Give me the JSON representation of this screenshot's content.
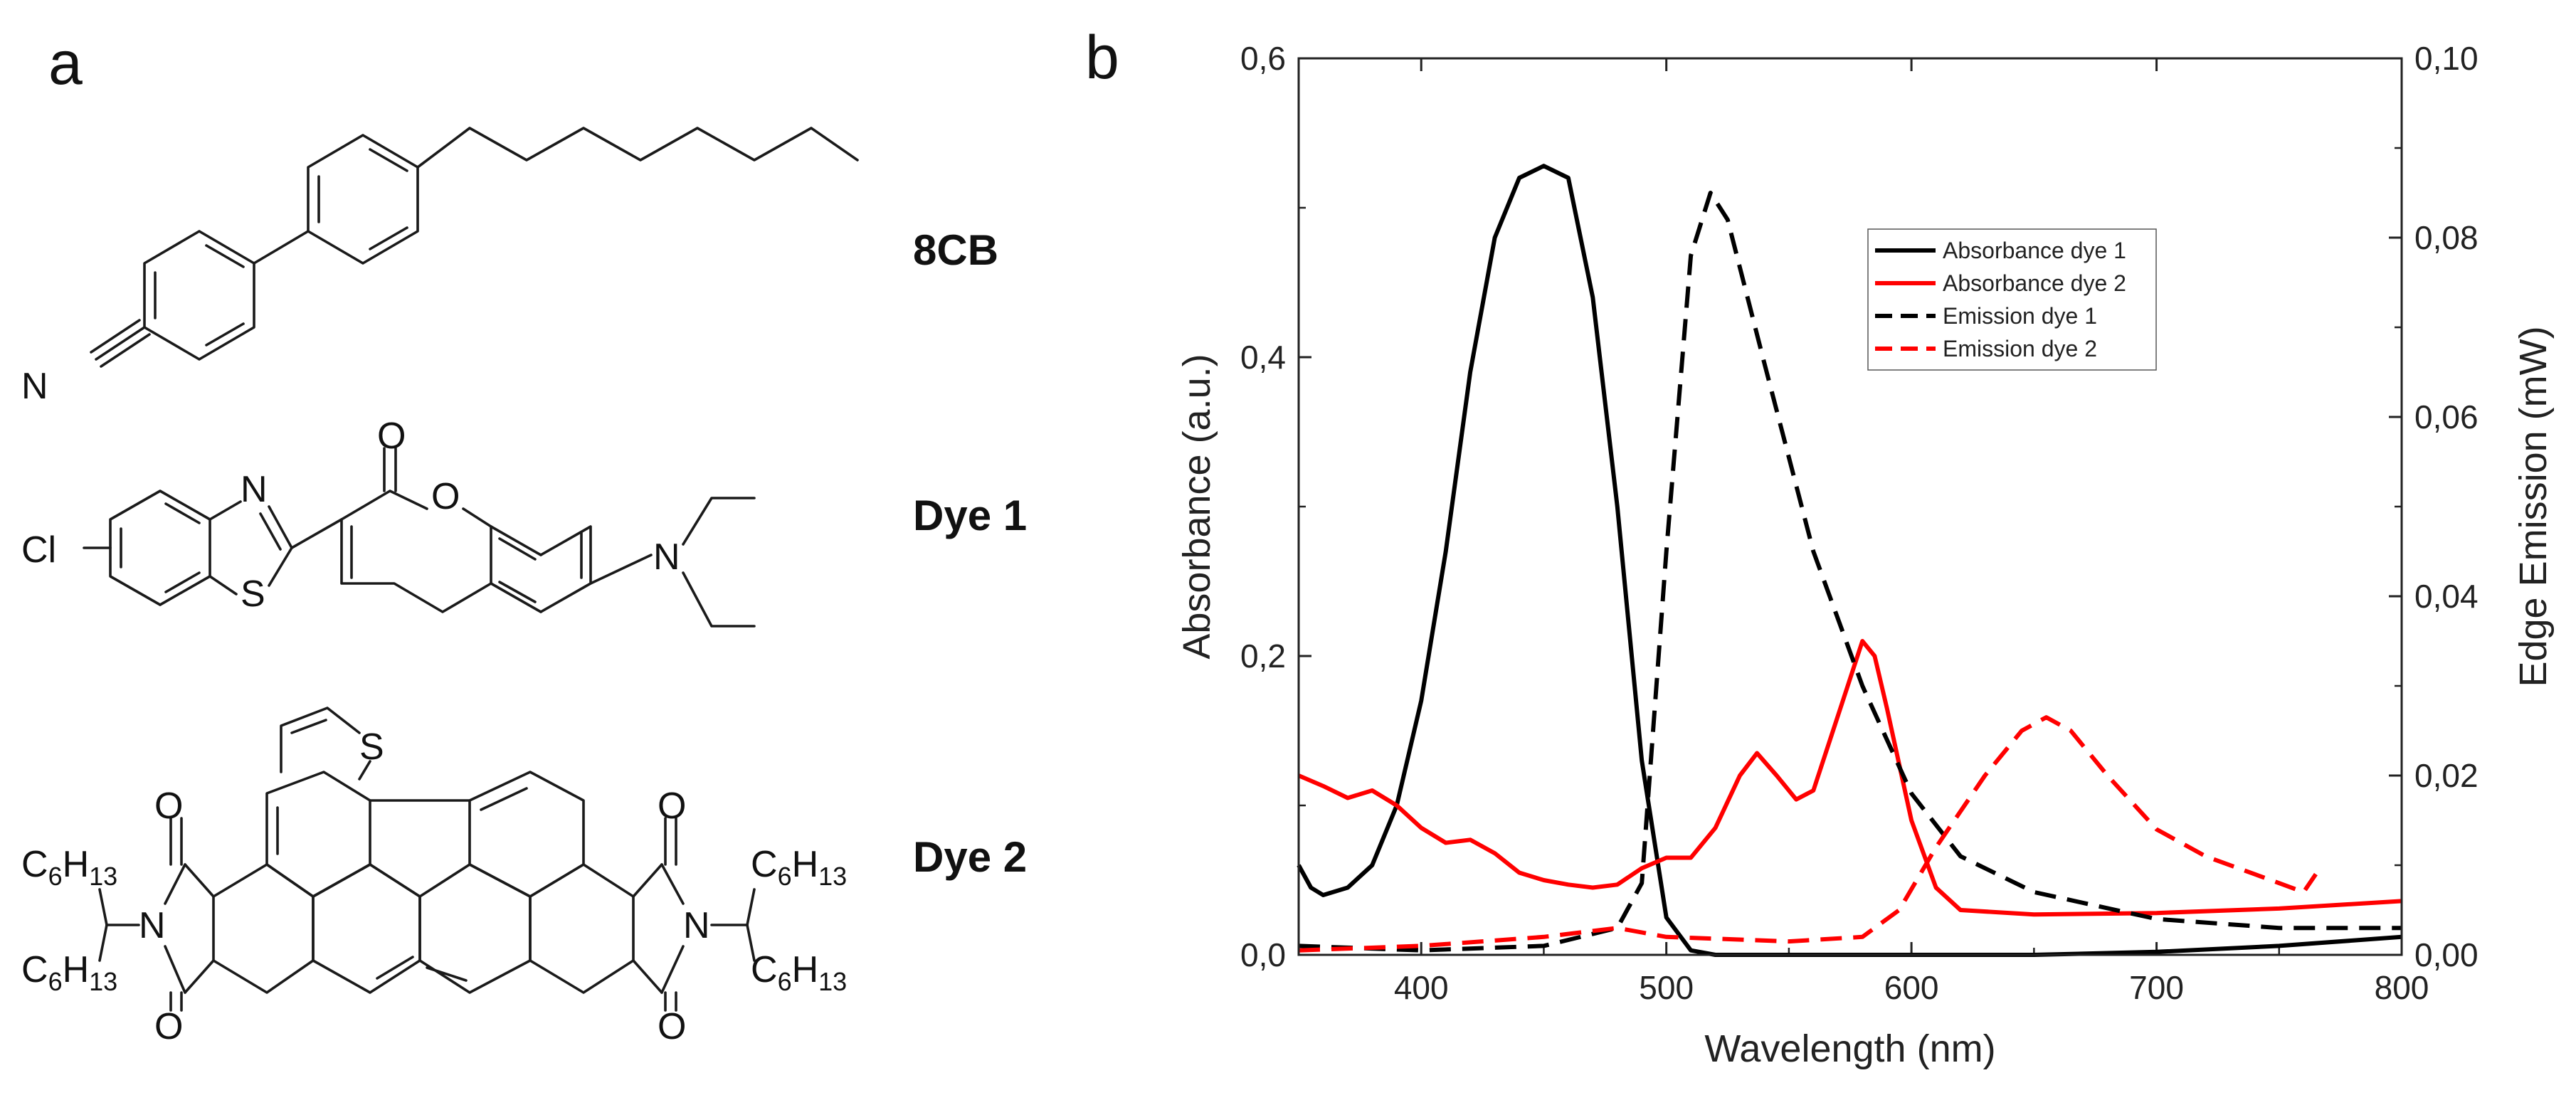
{
  "panels": {
    "a": "a",
    "b": "b"
  },
  "molecules": [
    {
      "name": "8CB"
    },
    {
      "name": "Dye 1"
    },
    {
      "name": "Dye 2"
    }
  ],
  "atoms": {
    "N": "N",
    "O": "O",
    "S": "S",
    "Cl": "Cl",
    "C": "C",
    "H": "H",
    "sub6": "6",
    "sub13": "13"
  },
  "chart_data": {
    "type": "line",
    "xlabel": "Wavelength (nm)",
    "ylabel_left": "Absorbance (a.u.)",
    "ylabel_right": "Edge Emission (mW)",
    "xlim": [
      350,
      800
    ],
    "ylim_left": [
      0,
      0.6
    ],
    "ylim_right": [
      0,
      0.1
    ],
    "x_ticks": [
      400,
      500,
      600,
      700,
      800
    ],
    "x_tick_labels": [
      "400",
      "500",
      "600",
      "700",
      "800"
    ],
    "y_left_ticks": [
      0,
      0.2,
      0.4,
      0.6
    ],
    "y_left_tick_labels": [
      "0,0",
      "0,2",
      "0,4",
      "0,6"
    ],
    "y_right_ticks": [
      0,
      0.02,
      0.04,
      0.06,
      0.08,
      0.1
    ],
    "y_right_tick_labels": [
      "0,00",
      "0,02",
      "0,04",
      "0,06",
      "0,08",
      "0,10"
    ],
    "legend_position": "upper-right",
    "series": [
      {
        "name": "Absorbance dye 1",
        "axis": "left",
        "color": "#000000",
        "style": "solid",
        "x": [
          350,
          355,
          360,
          370,
          380,
          390,
          400,
          410,
          420,
          430,
          440,
          450,
          460,
          470,
          480,
          490,
          500,
          510,
          520,
          550,
          600,
          650,
          700,
          750,
          800
        ],
        "y": [
          0.06,
          0.045,
          0.04,
          0.045,
          0.06,
          0.1,
          0.17,
          0.27,
          0.39,
          0.48,
          0.52,
          0.528,
          0.52,
          0.44,
          0.3,
          0.13,
          0.025,
          0.003,
          0.0,
          0.0,
          0.0,
          0.0,
          0.002,
          0.006,
          0.012
        ]
      },
      {
        "name": "Absorbance dye 2",
        "axis": "left",
        "color": "#ff0000",
        "style": "solid",
        "x": [
          350,
          360,
          370,
          380,
          390,
          400,
          410,
          420,
          430,
          440,
          450,
          460,
          470,
          480,
          490,
          500,
          510,
          520,
          530,
          537,
          545,
          553,
          560,
          570,
          580,
          585,
          590,
          600,
          610,
          620,
          650,
          700,
          750,
          800
        ],
        "y": [
          0.12,
          0.113,
          0.105,
          0.11,
          0.1,
          0.085,
          0.075,
          0.077,
          0.068,
          0.055,
          0.05,
          0.047,
          0.045,
          0.047,
          0.058,
          0.065,
          0.065,
          0.085,
          0.12,
          0.135,
          0.12,
          0.104,
          0.11,
          0.16,
          0.21,
          0.2,
          0.165,
          0.09,
          0.045,
          0.03,
          0.027,
          0.028,
          0.031,
          0.036
        ]
      },
      {
        "name": "Emission dye 1",
        "axis": "right",
        "color": "#000000",
        "style": "dashed",
        "x": [
          350,
          400,
          450,
          480,
          490,
          500,
          510,
          518,
          525,
          540,
          560,
          580,
          600,
          620,
          650,
          700,
          750,
          800
        ],
        "y": [
          0.001,
          0.0005,
          0.001,
          0.003,
          0.008,
          0.045,
          0.078,
          0.085,
          0.082,
          0.066,
          0.045,
          0.03,
          0.018,
          0.011,
          0.007,
          0.004,
          0.003,
          0.003
        ]
      },
      {
        "name": "Emission dye 2",
        "axis": "right",
        "color": "#ff0000",
        "style": "dashed",
        "x": [
          350,
          400,
          450,
          480,
          500,
          550,
          580,
          595,
          610,
          630,
          645,
          655,
          665,
          680,
          700,
          720,
          740,
          760,
          765
        ],
        "y": [
          0.0005,
          0.001,
          0.002,
          0.003,
          0.002,
          0.0015,
          0.002,
          0.005,
          0.012,
          0.02,
          0.025,
          0.0265,
          0.025,
          0.02,
          0.014,
          0.011,
          0.009,
          0.007,
          0.009
        ]
      }
    ]
  }
}
